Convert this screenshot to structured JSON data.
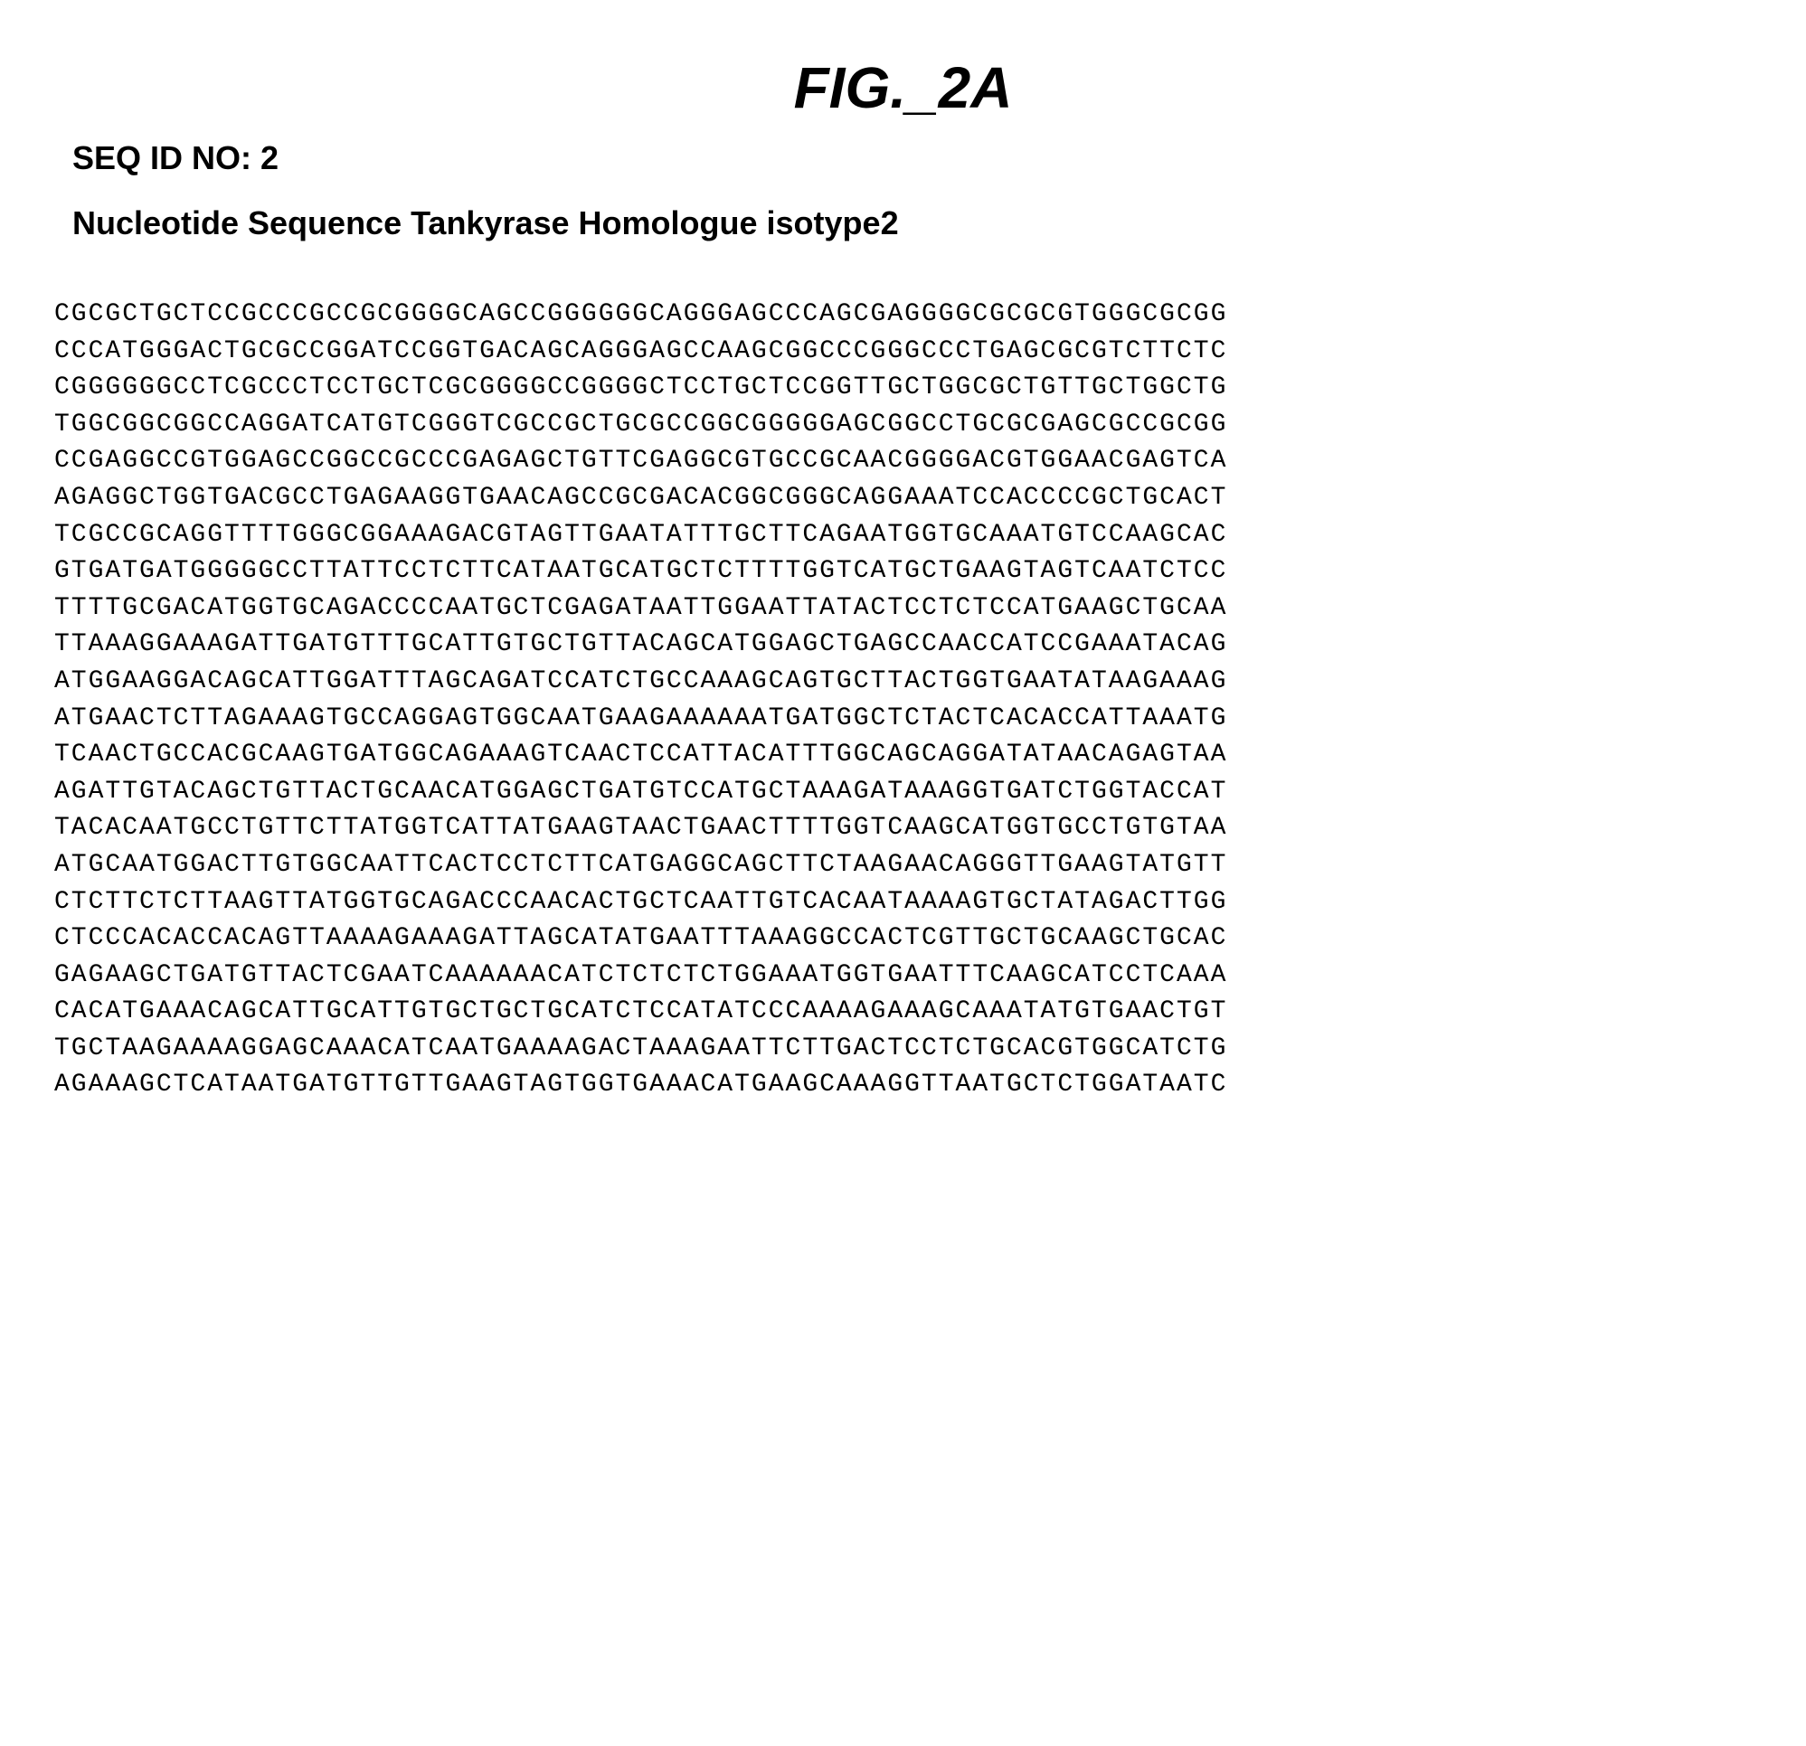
{
  "figure_title": "FIG._2A",
  "seq_id": "SEQ ID NO: 2",
  "subtitle": "Nucleotide Sequence Tankyrase Homologue isotype2",
  "sequence_lines": [
    "CGCGCTGCTCCGCCCGCCGCGGGGCAGCCGGGGGGCAGGGAGCCCAGCGAGGGGCGCGCGTGGGCGCGG",
    "CCCATGGGACTGCGCCGGATCCGGTGACAGCAGGGAGCCAAGCGGCCCGGGCCCTGAGCGCGTCTTCTC",
    "CGGGGGGCCTCGCCCTCCTGCTCGCGGGGCCGGGGCTCCTGCTCCGGTTGCTGGCGCTGTTGCTGGCTG",
    "TGGCGGCGGCCAGGATCATGTCGGGTCGCCGCTGCGCCGGCGGGGGAGCGGCCTGCGCGAGCGCCGCGG",
    "CCGAGGCCGTGGAGCCGGCCGCCCGAGAGCTGTTCGAGGCGTGCCGCAACGGGGACGTGGAACGAGTCA",
    "AGAGGCTGGTGACGCCTGAGAAGGTGAACAGCCGCGACACGGCGGGCAGGAAATCCACCCCGCTGCACT",
    "TCGCCGCAGGTTTTGGGCGGAAAGACGTAGTTGAATATTTGCTTCAGAATGGTGCAAATGTCCAAGCAC",
    "GTGATGATGGGGGCCTTATTCCTCTTCATAATGCATGCTCTTTTGGTCATGCTGAAGTAGTCAATCTCC",
    "TTTTGCGACATGGTGCAGACCCCAATGCTCGAGATAATTGGAATTATACTCCTCTCCATGAAGCTGCAA",
    "TTAAAGGAAAGATTGATGTTTGCATTGTGCTGTTACAGCATGGAGCTGAGCCAACCATCCGAAATACAG",
    "ATGGAAGGACAGCATTGGATTTAGCAGATCCATCTGCCAAAGCAGTGCTTACTGGTGAATATAAGAAAG",
    "ATGAACTCTTAGAAAGTGCCAGGAGTGGCAATGAAGAAAAAATGATGGCTCTACTCACACCATTAAATG",
    "TCAACTGCCACGCAAGTGATGGCAGAAAGTCAACTCCATTACATTTGGCAGCAGGATATAACAGAGTAA",
    "AGATTGTACAGCTGTTACTGCAACATGGAGCTGATGTCCATGCTAAAGATAAAGGTGATCTGGTACCAT",
    "TACACAATGCCTGTTCTTATGGTCATTATGAAGTAACTGAACTTTTGGTCAAGCATGGTGCCTGTGTAA",
    "ATGCAATGGACTTGTGGCAATTCACTCCTCTTCATGAGGCAGCTTCTAAGAACAGGGTTGAAGTATGTT",
    "CTCTTCTCTTAAGTTATGGTGCAGACCCAACACTGCTCAATTGTCACAATAAAAGTGCTATAGACTTGG",
    "CTCCCACACCACAGTTAAAAGAAAGATTAGCATATGAATTTAAAGGCCACTCGTTGCTGCAAGCTGCAC",
    "GAGAAGCTGATGTTACTCGAATCAAAAAACATCTCTCTCTGGAAATGGTGAATTTCAAGCATCCTCAAA",
    "CACATGAAACAGCATTGCATTGTGCTGCTGCATCTCCATATCCCAAAAGAAAGCAAATATGTGAACTGT",
    "TGCTAAGAAAAGGAGCAAACATCAATGAAAAGACTAAAGAATTCTTGACTCCTCTGCACGTGGCATCTG",
    "AGAAAGCTCATAATGATGTTGTTGAAGTAGTGGTGAAACATGAAGCAAAGGTTAATGCTCTGGATAATC"
  ],
  "styling": {
    "font_family_headings": "Arial, Helvetica, sans-serif",
    "font_family_sequence": "Courier New, Courier, monospace",
    "figure_title_fontsize": 64,
    "figure_title_weight": "bold",
    "figure_title_style": "italic",
    "seq_id_fontsize": 36,
    "subtitle_fontsize": 36,
    "sequence_fontsize": 28,
    "sequence_letter_spacing": 2,
    "sequence_line_height": 1.45,
    "background_color": "#ffffff",
    "text_color": "#000000"
  }
}
